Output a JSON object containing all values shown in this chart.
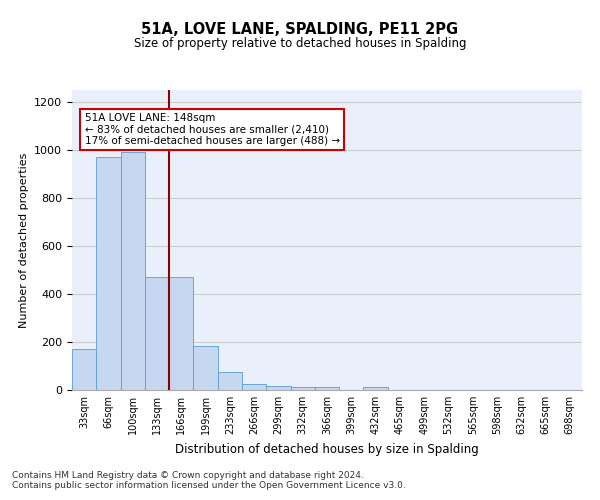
{
  "title": "51A, LOVE LANE, SPALDING, PE11 2PG",
  "subtitle": "Size of property relative to detached houses in Spalding",
  "xlabel": "Distribution of detached houses by size in Spalding",
  "ylabel": "Number of detached properties",
  "categories": [
    "33sqm",
    "66sqm",
    "100sqm",
    "133sqm",
    "166sqm",
    "199sqm",
    "233sqm",
    "266sqm",
    "299sqm",
    "332sqm",
    "366sqm",
    "399sqm",
    "432sqm",
    "465sqm",
    "499sqm",
    "532sqm",
    "565sqm",
    "598sqm",
    "632sqm",
    "665sqm",
    "698sqm"
  ],
  "values": [
    172,
    970,
    990,
    470,
    470,
    185,
    75,
    25,
    18,
    12,
    12,
    0,
    12,
    0,
    0,
    0,
    0,
    0,
    0,
    0,
    0
  ],
  "bar_color": "#c5d8f0",
  "bar_edge_color": "#5b9bd5",
  "grid_color": "#cccccc",
  "background_color": "#eaf0fb",
  "red_line_x": 3.5,
  "annotation_text": "51A LOVE LANE: 148sqm\n← 83% of detached houses are smaller (2,410)\n17% of semi-detached houses are larger (488) →",
  "footnote": "Contains HM Land Registry data © Crown copyright and database right 2024.\nContains public sector information licensed under the Open Government Licence v3.0.",
  "ylim": [
    0,
    1250
  ],
  "yticks": [
    0,
    200,
    400,
    600,
    800,
    1000,
    1200
  ]
}
